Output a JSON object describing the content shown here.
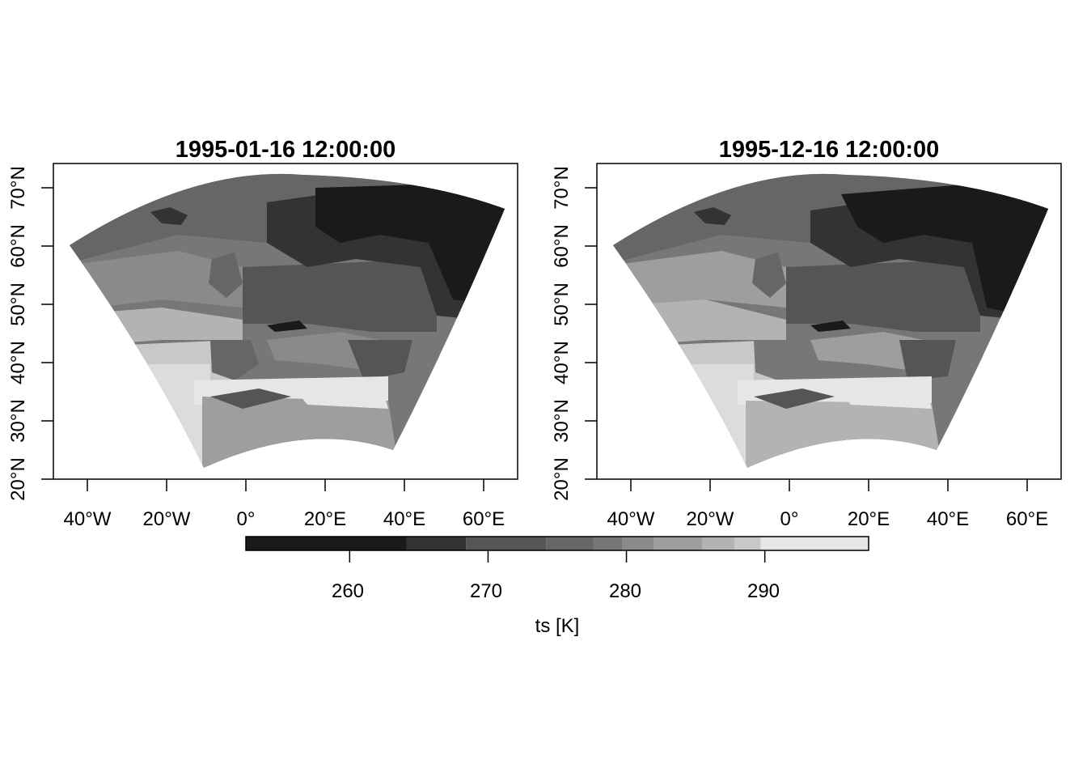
{
  "panels": [
    {
      "title": "1995-01-16 12:00:00",
      "x_ticks": [
        "40°W",
        "20°W",
        "0°",
        "20°E",
        "40°E",
        "60°E"
      ],
      "y_ticks": [
        "20°N",
        "30°N",
        "40°N",
        "50°N",
        "60°N",
        "70°N"
      ],
      "shading": "January mean field: very cold (dark) over Scandinavia, Russia and the far north-east; intermediate greys over central Europe and the Atlantic; warm (light) over North Africa and the Mediterranean"
    },
    {
      "title": "1995-12-16 12:00:00",
      "x_ticks": [
        "40°W",
        "20°W",
        "0°",
        "20°E",
        "40°E",
        "60°E"
      ],
      "y_ticks": [
        "20°N",
        "30°N",
        "40°N",
        "50°N",
        "60°N",
        "70°N"
      ],
      "shading": "December mean field: similar pattern, dark north-east, lighter south-west"
    }
  ],
  "colorbar": {
    "ticks": [
      "260",
      "270",
      "280",
      "290"
    ],
    "label": "ts [K]",
    "range_K": [
      252.5,
      297.5
    ],
    "tick_values_K": [
      260,
      270,
      280,
      290
    ],
    "colors": [
      "#1a1a1a",
      "#333333",
      "#555555",
      "#666666",
      "#777777",
      "#8a8a8a",
      "#9e9e9e",
      "#b3b3b3",
      "#c8c8c8",
      "#e6e6e6"
    ]
  }
}
